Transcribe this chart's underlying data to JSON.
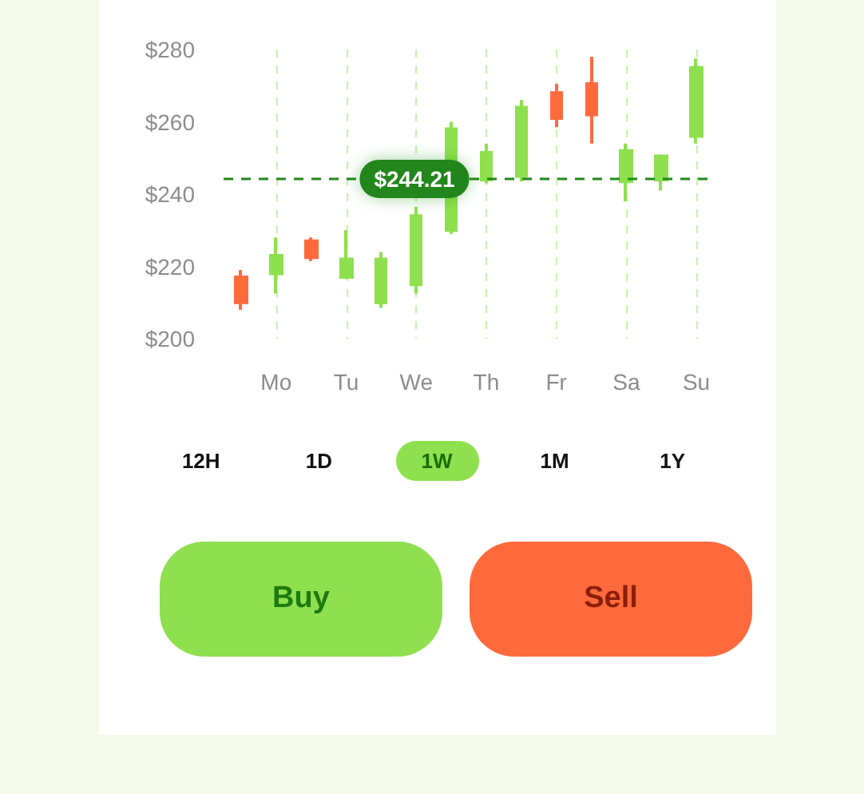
{
  "chart_data": {
    "type": "candlestick",
    "categories": [
      null,
      "Mo",
      null,
      "Tu",
      null,
      "We",
      null,
      "Th",
      null,
      "Fr",
      null,
      "Sa",
      null,
      "Su"
    ],
    "ohlc": [
      [
        217,
        219,
        208,
        210
      ],
      [
        218,
        228,
        212.5,
        223
      ],
      [
        227,
        228,
        221.5,
        222.5
      ],
      [
        217,
        230,
        216.5,
        222
      ],
      [
        210,
        224,
        208.5,
        222
      ],
      [
        215,
        236.5,
        212.5,
        234
      ],
      [
        230,
        260,
        229,
        258
      ],
      [
        244,
        254,
        243,
        251.5
      ],
      [
        245,
        266,
        243.5,
        264
      ],
      [
        268,
        270.5,
        258.5,
        261
      ],
      [
        270.5,
        278,
        254,
        262
      ],
      [
        243.5,
        254,
        238,
        252
      ],
      [
        244,
        251,
        241,
        250.5
      ],
      [
        256,
        277.5,
        254,
        275
      ]
    ],
    "colors": [
      "#ff6a3d",
      "#8ee04e",
      "#ff6a3d",
      "#8ee04e",
      "#8ee04e",
      "#8ee04e",
      "#8ee04e",
      "#8ee04e",
      "#8ee04e",
      "#ff6a3d",
      "#ff6a3d",
      "#8ee04e",
      "#8ee04e",
      "#8ee04e"
    ],
    "ylim": [
      200,
      280
    ],
    "yticks": [
      {
        "value": 200,
        "label": "$200"
      },
      {
        "value": 220,
        "label": "$220"
      },
      {
        "value": 240,
        "label": "$240"
      },
      {
        "value": 260,
        "label": "$260"
      },
      {
        "value": 280,
        "label": "$280"
      }
    ],
    "grid": "x",
    "ref_lines": [
      {
        "axis": "y",
        "value": 244.21,
        "label": "$244.21",
        "color": "#22861a",
        "line_style": "dashed"
      }
    ],
    "annotations": [
      "12H",
      "1D",
      "1W",
      "1M",
      "1Y",
      "Buy",
      "Sell"
    ]
  }
}
